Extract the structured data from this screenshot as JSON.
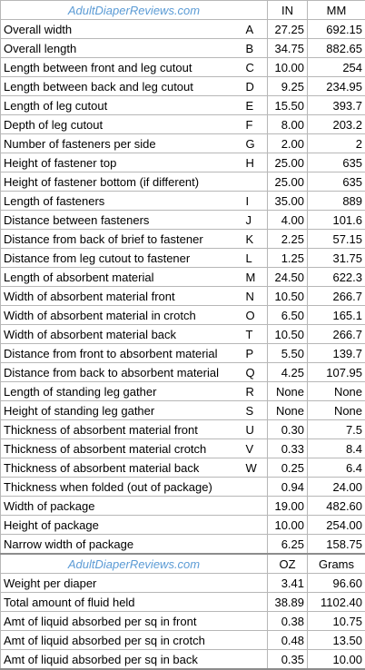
{
  "sheet": {
    "header1": {
      "site": "AdultDiaperReviews.com",
      "col1": "IN",
      "col2": "MM"
    },
    "rows1": [
      {
        "label": "Overall width",
        "code": "A",
        "v1": "27.25",
        "v2": "692.15"
      },
      {
        "label": "Overall length",
        "code": "B",
        "v1": "34.75",
        "v2": "882.65"
      },
      {
        "label": "Length between front and leg cutout",
        "code": "C",
        "v1": "10.00",
        "v2": "254"
      },
      {
        "label": "Length between back and leg cutout",
        "code": "D",
        "v1": "9.25",
        "v2": "234.95"
      },
      {
        "label": "Length of leg cutout",
        "code": "E",
        "v1": "15.50",
        "v2": "393.7"
      },
      {
        "label": "Depth of leg cutout",
        "code": "F",
        "v1": "8.00",
        "v2": "203.2"
      },
      {
        "label": "Number of fasteners per side",
        "code": "G",
        "v1": "2.00",
        "v2": "2"
      },
      {
        "label": "Height of fastener top",
        "code": "H",
        "v1": "25.00",
        "v2": "635"
      },
      {
        "label": "Height of fastener bottom (if different)",
        "code": "",
        "v1": "25.00",
        "v2": "635"
      },
      {
        "label": "Length of fasteners",
        "code": "I",
        "v1": "35.00",
        "v2": "889"
      },
      {
        "label": "Distance between fasteners",
        "code": "J",
        "v1": "4.00",
        "v2": "101.6"
      },
      {
        "label": "Distance from back of brief to fastener",
        "code": "K",
        "v1": "2.25",
        "v2": "57.15"
      },
      {
        "label": "Distance from leg cutout to fastener",
        "code": "L",
        "v1": "1.25",
        "v2": "31.75"
      },
      {
        "label": "Length of absorbent material",
        "code": "M",
        "v1": "24.50",
        "v2": "622.3"
      },
      {
        "label": "Width of absorbent material front",
        "code": "N",
        "v1": "10.50",
        "v2": "266.7"
      },
      {
        "label": "Width of absorbent material in crotch",
        "code": "O",
        "v1": "6.50",
        "v2": "165.1"
      },
      {
        "label": "Width of absorbent material back",
        "code": "T",
        "v1": "10.50",
        "v2": "266.7"
      },
      {
        "label": "Distance from front to absorbent material",
        "code": "P",
        "v1": "5.50",
        "v2": "139.7"
      },
      {
        "label": "Distance from back to absorbent material",
        "code": "Q",
        "v1": "4.25",
        "v2": "107.95"
      },
      {
        "label": "Length of standing leg gather",
        "code": "R",
        "v1": "None",
        "v2": "None"
      },
      {
        "label": "Height of standing leg gather",
        "code": "S",
        "v1": "None",
        "v2": "None"
      },
      {
        "label": "Thickness of absorbent material front",
        "code": "U",
        "v1": "0.30",
        "v2": "7.5"
      },
      {
        "label": "Thickness of absorbent material crotch",
        "code": "V",
        "v1": "0.33",
        "v2": "8.4"
      },
      {
        "label": "Thickness of absorbent material back",
        "code": "W",
        "v1": "0.25",
        "v2": "6.4"
      },
      {
        "label": "Thickness when folded (out of package)",
        "code": "",
        "v1": "0.94",
        "v2": "24.00"
      },
      {
        "label": "Width of package",
        "code": "",
        "v1": "19.00",
        "v2": "482.60"
      },
      {
        "label": "Height of package",
        "code": "",
        "v1": "10.00",
        "v2": "254.00"
      },
      {
        "label": "Narrow width of package",
        "code": "",
        "v1": "6.25",
        "v2": "158.75"
      }
    ],
    "header2": {
      "site": "AdultDiaperReviews.com",
      "col1": "OZ",
      "col2": "Grams"
    },
    "rows2": [
      {
        "label": "Weight per diaper",
        "code": "",
        "v1": "3.41",
        "v2": "96.60"
      },
      {
        "label": "Total amount of fluid held",
        "code": "",
        "v1": "38.89",
        "v2": "1102.40"
      },
      {
        "label": "Amt of liquid absorbed per sq in front",
        "code": "",
        "v1": "0.38",
        "v2": "10.75"
      },
      {
        "label": "Amt of liquid absorbed per sq in crotch",
        "code": "",
        "v1": "0.48",
        "v2": "13.50"
      },
      {
        "label": "Amt of liquid absorbed per sq in back",
        "code": "",
        "v1": "0.35",
        "v2": "10.00"
      }
    ]
  }
}
